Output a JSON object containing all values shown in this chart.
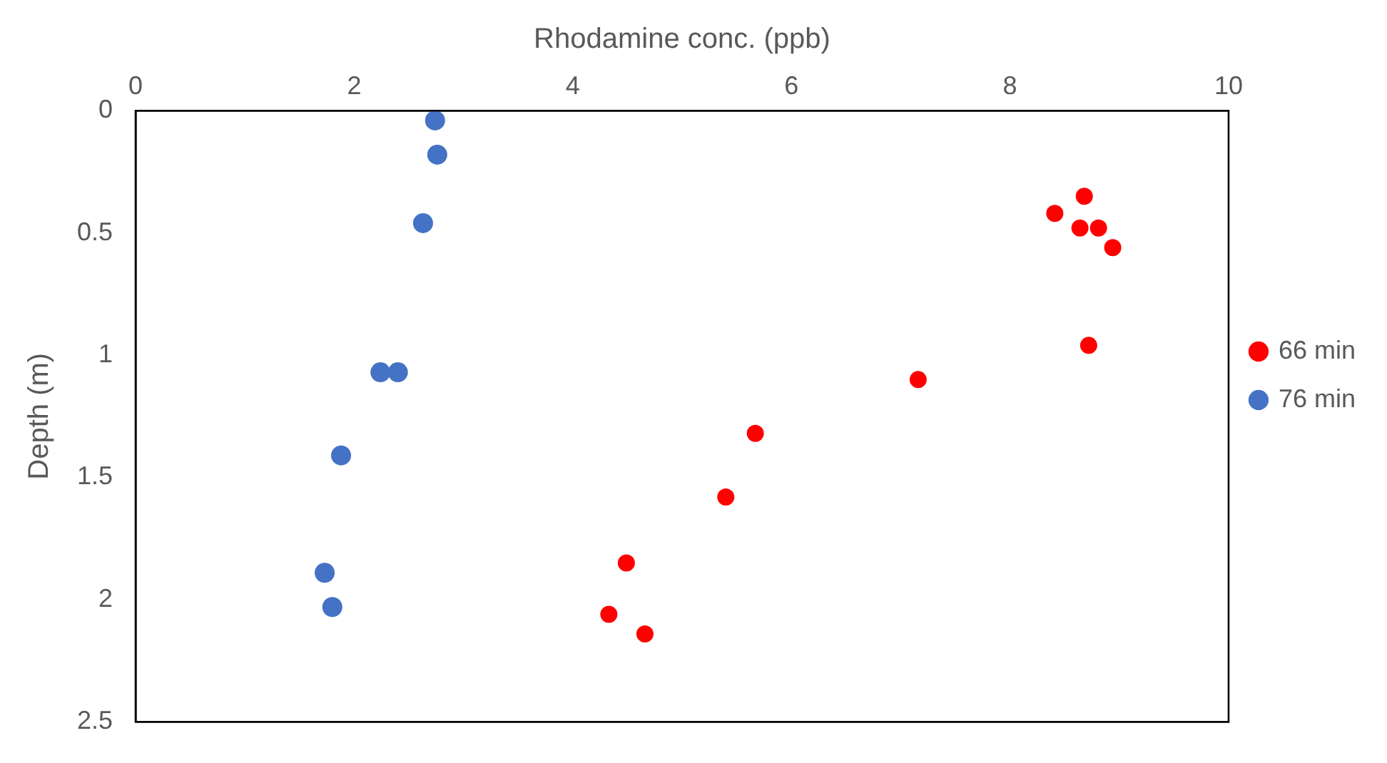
{
  "chart_data": {
    "type": "scatter",
    "xlabel": "Rhodamine conc. (ppb)",
    "ylabel": "Depth (m)",
    "xlim": [
      0,
      10
    ],
    "xticks": [
      0,
      2,
      4,
      6,
      8,
      10
    ],
    "ylim": [
      2.5,
      0
    ],
    "yticks": [
      0,
      0.5,
      1,
      1.5,
      2,
      2.5
    ],
    "grid": false,
    "legend": "right",
    "marker": "circle",
    "series": [
      {
        "name": "66 min",
        "color": "#ff0000",
        "x": [
          8.68,
          8.41,
          8.64,
          8.81,
          8.94,
          8.72,
          7.16,
          5.67,
          5.4,
          4.49,
          4.33,
          4.66
        ],
        "values": [
          0.35,
          0.42,
          0.48,
          0.48,
          0.56,
          0.96,
          1.1,
          1.32,
          1.58,
          1.85,
          2.06,
          2.14
        ]
      },
      {
        "name": "76 min",
        "color": "#4472c4",
        "x": [
          2.74,
          2.76,
          2.63,
          2.24,
          2.4,
          1.88,
          1.73,
          1.8
        ],
        "values": [
          0.04,
          0.18,
          0.46,
          1.07,
          1.07,
          1.41,
          1.89,
          2.03
        ]
      }
    ]
  }
}
